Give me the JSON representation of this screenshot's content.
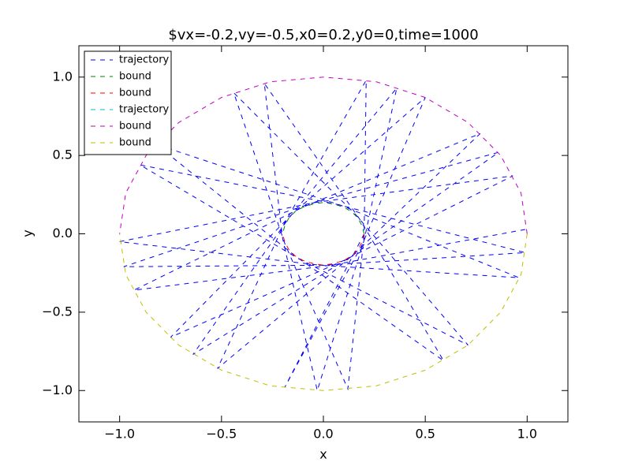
{
  "chart_data": {
    "type": "line",
    "title": "$vx=-0.2,vy=-0.5,x0=0.2,y0=0,time=1000",
    "x_label": "x",
    "y_label": "y",
    "xlim": [
      -1.2,
      1.2
    ],
    "ylim": [
      -1.2,
      1.2
    ],
    "xticks": [
      {
        "value": -1,
        "label": "−1.0"
      },
      {
        "value": -0.5,
        "label": "−0.5"
      },
      {
        "value": 0,
        "label": "0.0"
      },
      {
        "value": 0.5,
        "label": "0.5"
      },
      {
        "value": 1,
        "label": "1.0"
      }
    ],
    "yticks": [
      {
        "value": -1,
        "label": "−1.0"
      },
      {
        "value": -0.5,
        "label": "−0.5"
      },
      {
        "value": 0,
        "label": "0.0"
      },
      {
        "value": 0.5,
        "label": "0.5"
      },
      {
        "value": 1,
        "label": "1.0"
      }
    ],
    "legend": "upper left",
    "series": [
      {
        "name": "trajectory",
        "color": "#0000ff",
        "x": [
          0.2,
          -0.19,
          0.19,
          0.5,
          -0.15,
          -0.75,
          0.1,
          0.93,
          -0.04,
          -1.0,
          -0.02,
          0.96,
          0.09,
          -0.82,
          -0.14,
          0.59,
          0.18,
          -0.29,
          -0.2,
          -0.03,
          0.2,
          0.36,
          -0.17,
          -0.64,
          0.13,
          0.86,
          -0.07,
          -0.98,
          0.01,
          0.99,
          0.06,
          -0.9,
          -0.12,
          0.71,
          0.16,
          -0.44,
          -0.19,
          0.12,
          0.2,
          0.21,
          -0.19,
          -0.52,
          0.15,
          0.77,
          -0.1,
          -0.93,
          0.04,
          1.0
        ],
        "y": [
          0,
          -0.98,
          -0.07,
          0.87,
          0.13,
          -0.66,
          -0.17,
          0.37,
          0.2,
          -0.05,
          -0.2,
          -0.28,
          0.18,
          0.57,
          -0.14,
          -0.81,
          0.09,
          0.96,
          -0.03,
          -1.0,
          -0.04,
          0.93,
          0.1,
          -0.77,
          -0.15,
          0.52,
          0.19,
          -0.21,
          -0.2,
          -0.12,
          0.19,
          0.44,
          -0.16,
          -0.71,
          0.12,
          0.9,
          -0.06,
          -0.99,
          -0.01,
          0.98,
          0.07,
          -0.86,
          -0.13,
          0.64,
          0.17,
          -0.36,
          -0.2,
          0.03
        ]
      },
      {
        "name": "bound",
        "color": "#008000",
        "x": [
          0.2,
          0.19,
          0.17,
          0.14,
          0.1,
          0.05,
          0,
          -0.05,
          -0.1,
          -0.14,
          -0.17,
          -0.19,
          -0.2
        ],
        "y": [
          0,
          0.05,
          0.1,
          0.14,
          0.17,
          0.19,
          0.2,
          0.19,
          0.17,
          0.14,
          0.1,
          0.05,
          0
        ]
      },
      {
        "name": "bound",
        "color": "#ff0000",
        "x": [
          0.2,
          0.19,
          0.17,
          0.14,
          0.1,
          0.05,
          0,
          -0.05,
          -0.1,
          -0.14,
          -0.17,
          -0.19,
          -0.2
        ],
        "y": [
          0,
          -0.05,
          -0.1,
          -0.14,
          -0.17,
          -0.19,
          -0.2,
          -0.19,
          -0.17,
          -0.14,
          -0.1,
          -0.05,
          0
        ]
      },
      {
        "name": "trajectory",
        "color": "#00bfbf",
        "x": [
          0.2
        ],
        "y": [
          0
        ]
      },
      {
        "name": "bound",
        "color": "#bf00bf",
        "x": [
          1,
          0.97,
          0.87,
          0.71,
          0.5,
          0.26,
          0,
          -0.26,
          -0.5,
          -0.71,
          -0.87,
          -0.97,
          -1
        ],
        "y": [
          0,
          0.26,
          0.5,
          0.71,
          0.87,
          0.97,
          1,
          0.97,
          0.87,
          0.71,
          0.5,
          0.26,
          0
        ]
      },
      {
        "name": "bound",
        "color": "#bfbf00",
        "x": [
          1,
          0.97,
          0.87,
          0.71,
          0.5,
          0.26,
          0,
          -0.26,
          -0.5,
          -0.71,
          -0.87,
          -0.97,
          -1
        ],
        "y": [
          0,
          -0.26,
          -0.5,
          -0.71,
          -0.87,
          -0.97,
          -1,
          -0.97,
          -0.87,
          -0.71,
          -0.5,
          -0.26,
          0
        ]
      }
    ]
  }
}
